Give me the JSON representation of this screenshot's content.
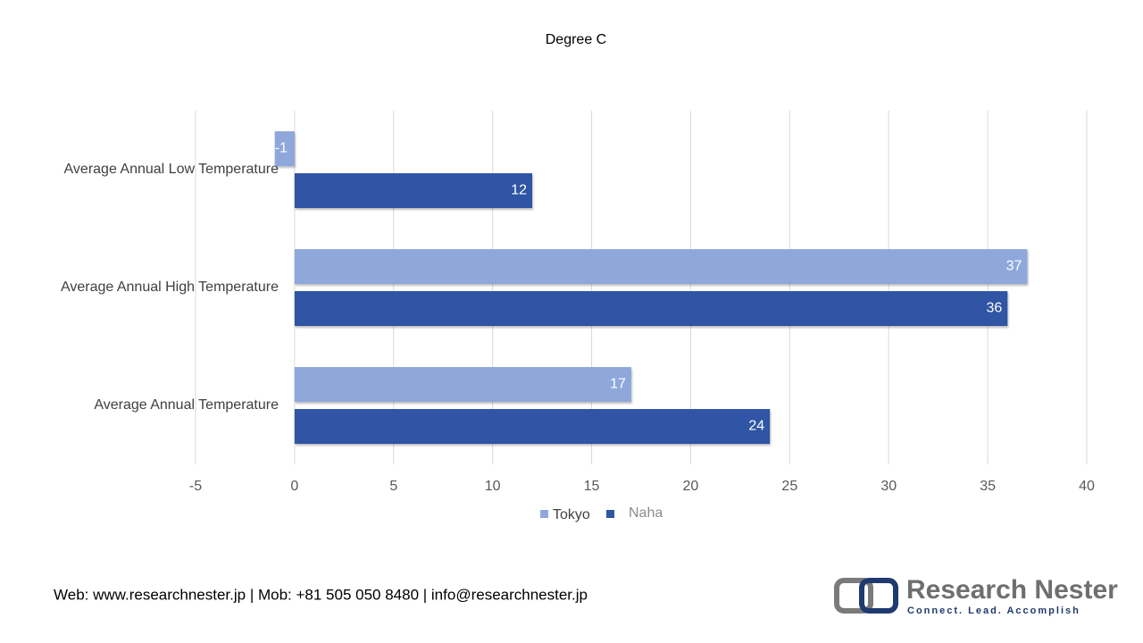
{
  "chart_data": {
    "type": "barh",
    "title": "Degree C",
    "categories": [
      "Average Annual Low Temperature",
      "Average Annual High Temperature",
      "Average Annual Temperature"
    ],
    "series": [
      {
        "name": "Tokyo",
        "color": "#8fa8dc",
        "values": [
          -1,
          37,
          17
        ]
      },
      {
        "name": "Naha",
        "color": "#2f55a4",
        "values": [
          12,
          36,
          24
        ]
      }
    ],
    "xlim": [
      -5,
      40
    ],
    "xticks": [
      -5,
      0,
      5,
      10,
      15,
      20,
      25,
      30,
      35,
      40
    ],
    "grid": true,
    "legend": "bottom"
  },
  "footer": {
    "contact": "Web: www.researchnester.jp | Mob: +81 505 050 8480 | info@researchnester.jp"
  },
  "logo": {
    "name": "Research Nester",
    "tagline": "Connect. Lead. Accomplish"
  }
}
